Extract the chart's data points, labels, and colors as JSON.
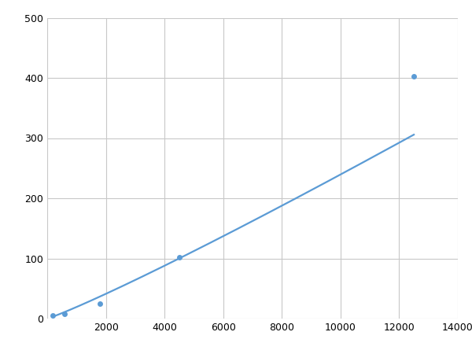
{
  "x_data": [
    200,
    600,
    1800,
    4500,
    12500
  ],
  "y_data": [
    5,
    8,
    25,
    102,
    402
  ],
  "line_color": "#5b9bd5",
  "marker_color": "#5b9bd5",
  "marker_size": 5,
  "line_width": 1.6,
  "xlim": [
    0,
    14000
  ],
  "ylim": [
    0,
    500
  ],
  "xticks": [
    0,
    2000,
    4000,
    6000,
    8000,
    10000,
    12000,
    14000
  ],
  "yticks": [
    0,
    100,
    200,
    300,
    400,
    500
  ],
  "xtick_labels": [
    "",
    "2000",
    "4000",
    "6000",
    "8000",
    "10000",
    "12000",
    "14000"
  ],
  "background_color": "#ffffff",
  "grid_color": "#c8c8c8",
  "grid_alpha": 1.0,
  "figsize": [
    6.0,
    4.5
  ],
  "dpi": 100
}
